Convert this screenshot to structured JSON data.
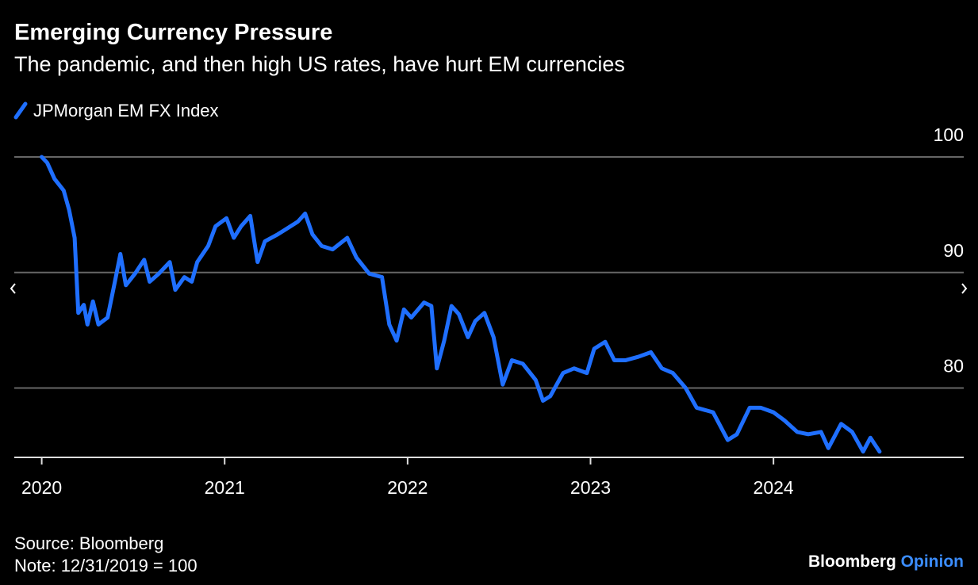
{
  "chart_data": {
    "type": "line",
    "title": "Emerging Currency Pressure",
    "subtitle": "The pandemic, and then high US rates, have hurt EM currencies",
    "source": "Source: Bloomberg",
    "note": "Note: 12/31/2019 = 100",
    "brand": "Bloomberg",
    "brand_suffix": "Opinion",
    "x": [
      2020.0,
      2020.03,
      2020.07,
      2020.12,
      2020.15,
      2020.18,
      2020.2,
      2020.23,
      2020.25,
      2020.28,
      2020.31,
      2020.36,
      2020.4,
      2020.43,
      2020.46,
      2020.51,
      2020.56,
      2020.59,
      2020.64,
      2020.7,
      2020.73,
      2020.78,
      2020.82,
      2020.85,
      2020.91,
      2020.95,
      2021.01,
      2021.05,
      2021.09,
      2021.14,
      2021.18,
      2021.22,
      2021.29,
      2021.33,
      2021.4,
      2021.44,
      2021.48,
      2021.53,
      2021.59,
      2021.67,
      2021.72,
      2021.79,
      2021.86,
      2021.9,
      2021.94,
      2021.98,
      2022.02,
      2022.09,
      2022.13,
      2022.16,
      2022.2,
      2022.24,
      2022.28,
      2022.33,
      2022.37,
      2022.42,
      2022.47,
      2022.52,
      2022.57,
      2022.63,
      2022.7,
      2022.74,
      2022.78,
      2022.85,
      2022.91,
      2022.98,
      2023.02,
      2023.08,
      2023.13,
      2023.19,
      2023.26,
      2023.33,
      2023.39,
      2023.45,
      2023.52,
      2023.58,
      2023.67,
      2023.75,
      2023.8,
      2023.87,
      2023.93,
      2024.0,
      2024.06,
      2024.13,
      2024.19,
      2024.26,
      2024.3,
      2024.37,
      2024.43,
      2024.49,
      2024.53,
      2024.58
    ],
    "series": [
      {
        "name": "JPMorgan EM FX Index",
        "color": "#1f6fff",
        "values": [
          100,
          99.5,
          98.1,
          97.1,
          95.4,
          93.0,
          86.5,
          87.2,
          85.5,
          87.5,
          85.5,
          86.1,
          89.2,
          91.6,
          88.9,
          89.9,
          91.1,
          89.2,
          89.9,
          90.9,
          88.5,
          89.6,
          89.2,
          90.9,
          92.3,
          94.0,
          94.7,
          93.0,
          94.0,
          94.9,
          90.9,
          92.7,
          93.3,
          93.7,
          94.4,
          95.1,
          93.3,
          92.3,
          92.0,
          93.0,
          91.3,
          89.9,
          89.6,
          85.5,
          84.1,
          86.8,
          86.1,
          87.4,
          87.1,
          81.7,
          84.1,
          87.1,
          86.4,
          84.4,
          85.8,
          86.5,
          84.4,
          80.3,
          82.4,
          82.1,
          80.7,
          78.9,
          79.3,
          81.3,
          81.7,
          81.3,
          83.4,
          84.0,
          82.4,
          82.4,
          82.7,
          83.1,
          81.7,
          81.3,
          80.0,
          78.3,
          77.9,
          75.5,
          76.0,
          78.3,
          78.3,
          77.9,
          77.2,
          76.2,
          76.0,
          76.2,
          74.8,
          76.9,
          76.2,
          74.5,
          75.7,
          74.5
        ]
      }
    ],
    "xlim": [
      2019.85,
      2025.04
    ],
    "xticks": [
      2020,
      2021,
      2022,
      2023,
      2024
    ],
    "ylim": [
      74,
      100
    ],
    "yticks": [
      80,
      90,
      100
    ],
    "grid": true
  }
}
